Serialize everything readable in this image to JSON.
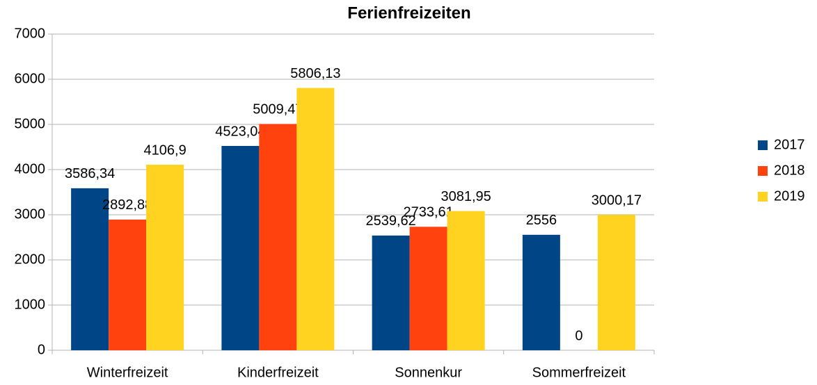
{
  "chart_data": {
    "type": "bar",
    "title": "Ferienfreizeiten",
    "categories": [
      "Winterfreizeit",
      "Kinderfreizeit",
      "Sonnenkur",
      "Sommerfreizeit"
    ],
    "series": [
      {
        "name": "2017",
        "color": "#004586",
        "values": [
          3586.34,
          4523.04,
          2539.62,
          2556
        ],
        "value_labels": [
          "3586,34",
          "4523,04",
          "2539,62",
          "2556"
        ]
      },
      {
        "name": "2018",
        "color": "#ff420e",
        "values": [
          2892.88,
          5009.47,
          2733.61,
          0
        ],
        "value_labels": [
          "2892,88",
          "5009,47",
          "2733,61",
          "0"
        ]
      },
      {
        "name": "2019",
        "color": "#ffd320",
        "values": [
          4106.9,
          5806.13,
          3081.95,
          3000.17
        ],
        "value_labels": [
          "4106,9",
          "5806,13",
          "3081,95",
          "3000,17"
        ]
      }
    ],
    "ylim": [
      0,
      7000
    ],
    "yticks": [
      0,
      1000,
      2000,
      3000,
      4000,
      5000,
      6000,
      7000
    ],
    "grid": true,
    "legend": "right"
  }
}
